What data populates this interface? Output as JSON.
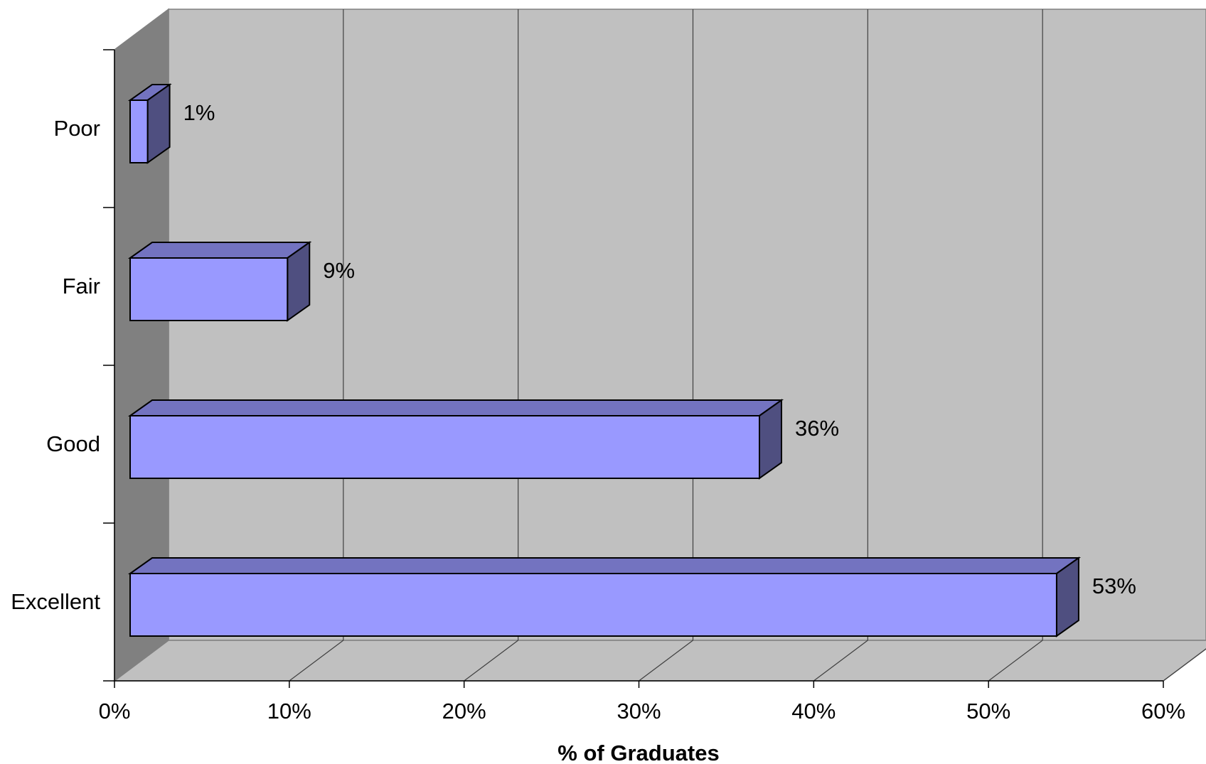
{
  "chart_data": {
    "type": "bar",
    "orientation": "horizontal",
    "style": "3d",
    "categories": [
      "Poor",
      "Fair",
      "Good",
      "Excellent"
    ],
    "values": [
      1,
      9,
      36,
      53
    ],
    "data_labels": [
      "1%",
      "9%",
      "36%",
      "53%"
    ],
    "xlabel": "% of Graduates",
    "ylabel": "",
    "xlim": [
      0,
      60
    ],
    "x_ticks": [
      0,
      10,
      20,
      30,
      40,
      50,
      60
    ],
    "x_tick_labels": [
      "0%",
      "10%",
      "20%",
      "30%",
      "40%",
      "50%",
      "60%"
    ],
    "grid": true,
    "legend": "none",
    "colors": {
      "bar_front": "#9999ff",
      "bar_top": "#7373c0",
      "bar_side": "#4f4f80",
      "wall_back": "#c0c0c0",
      "wall_side": "#808080",
      "floor": "#c0c0c0",
      "grid": "#000000"
    }
  }
}
